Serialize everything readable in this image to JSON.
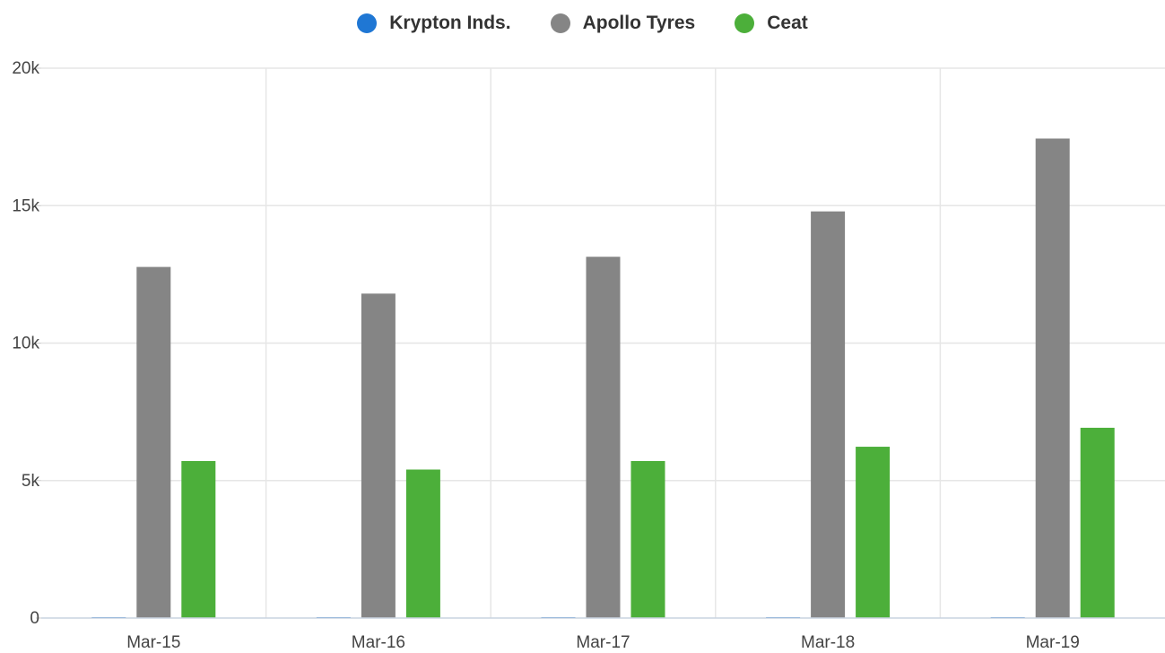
{
  "chart_data": {
    "type": "bar",
    "categories": [
      "Mar-15",
      "Mar-16",
      "Mar-17",
      "Mar-18",
      "Mar-19"
    ],
    "series": [
      {
        "name": "Krypton Inds.",
        "color": "#1f77d4",
        "values": [
          8,
          8,
          8,
          8,
          8
        ]
      },
      {
        "name": "Apollo Tyres",
        "color": "#858585",
        "values": [
          12770,
          11800,
          13140,
          14790,
          17440
        ]
      },
      {
        "name": "Ceat",
        "color": "#4caf3a",
        "values": [
          5710,
          5400,
          5710,
          6230,
          6920
        ]
      }
    ],
    "ylim": [
      0,
      20000
    ],
    "yticks": [
      {
        "value": 0,
        "label": "0"
      },
      {
        "value": 5000,
        "label": "5k"
      },
      {
        "value": 10000,
        "label": "10k"
      },
      {
        "value": 15000,
        "label": "15k"
      },
      {
        "value": 20000,
        "label": "20k"
      }
    ],
    "grid": true,
    "legend_position": "top-center"
  }
}
